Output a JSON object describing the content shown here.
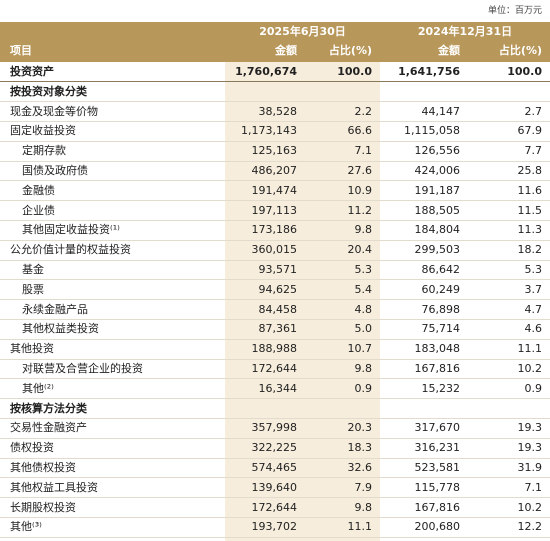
{
  "unit": "单位：百万元",
  "header": {
    "item": "项目",
    "periods": [
      "2025年6月30日",
      "2024年12月31日"
    ],
    "amount": "金额",
    "share": "占比(%)"
  },
  "table": {
    "rows": [
      [
        "投资资产",
        "1,760,674",
        "100.0",
        "1,641,756",
        "100.0"
      ],
      [
        "按投资对象分类"
      ],
      [
        "现金及现金等价物",
        "38,528",
        "2.2",
        "44,147",
        "2.7"
      ],
      [
        "固定收益投资",
        "1,173,143",
        "66.6",
        "1,115,058",
        "67.9"
      ],
      [
        "定期存款",
        "125,163",
        "7.1",
        "126,556",
        "7.7"
      ],
      [
        "国债及政府债",
        "486,207",
        "27.6",
        "424,006",
        "25.8"
      ],
      [
        "金融债",
        "191,474",
        "10.9",
        "191,187",
        "11.6"
      ],
      [
        "企业债",
        "197,113",
        "11.2",
        "188,505",
        "11.5"
      ],
      [
        "其他固定收益投资⁽¹⁾",
        "173,186",
        "9.8",
        "184,804",
        "11.3"
      ],
      [
        "公允价值计量的权益投资",
        "360,015",
        "20.4",
        "299,503",
        "18.2"
      ],
      [
        "基金",
        "93,571",
        "5.3",
        "86,642",
        "5.3"
      ],
      [
        "股票",
        "94,625",
        "5.4",
        "60,249",
        "3.7"
      ],
      [
        "永续金融产品",
        "84,458",
        "4.8",
        "76,898",
        "4.7"
      ],
      [
        "其他权益类投资",
        "87,361",
        "5.0",
        "75,714",
        "4.6"
      ],
      [
        "其他投资",
        "188,988",
        "10.7",
        "183,048",
        "11.1"
      ],
      [
        "对联营及合营企业的投资",
        "172,644",
        "9.8",
        "167,816",
        "10.2"
      ],
      [
        "其他⁽²⁾",
        "16,344",
        "0.9",
        "15,232",
        "0.9"
      ],
      [
        "按核算方法分类"
      ],
      [
        "交易性金融资产",
        "357,998",
        "20.3",
        "317,670",
        "19.3"
      ],
      [
        "债权投资",
        "322,225",
        "18.3",
        "316,231",
        "19.3"
      ],
      [
        "其他债权投资",
        "574,465",
        "32.6",
        "523,581",
        "31.9"
      ],
      [
        "其他权益工具投资",
        "139,640",
        "7.9",
        "115,778",
        "7.1"
      ],
      [
        "长期股权投资",
        "172,644",
        "9.8",
        "167,816",
        "10.2"
      ],
      [
        "其他⁽³⁾",
        "193,702",
        "11.1",
        "200,680",
        "12.2"
      ]
    ]
  }
}
